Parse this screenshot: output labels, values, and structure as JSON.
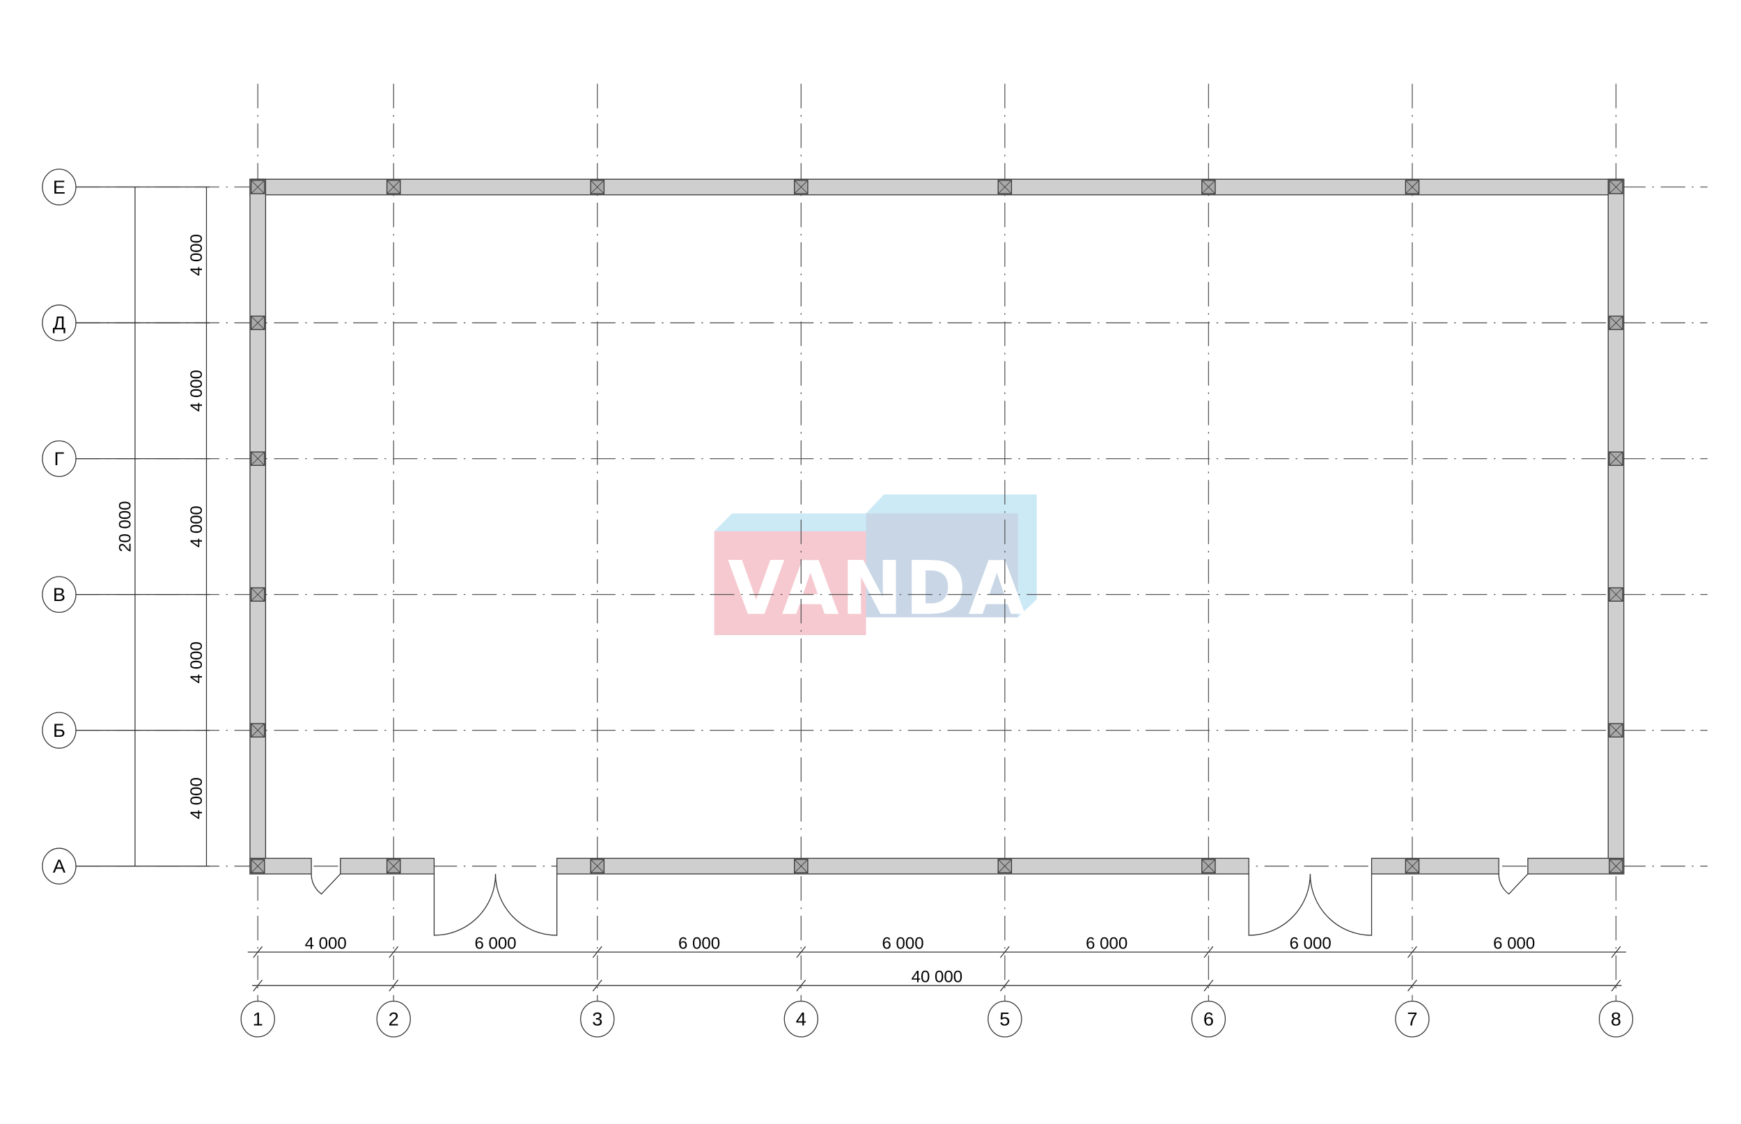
{
  "plan": {
    "column_axes": [
      "1",
      "2",
      "3",
      "4",
      "5",
      "6",
      "7",
      "8"
    ],
    "column_spacings_mm": [
      4000,
      6000,
      6000,
      6000,
      6000,
      6000,
      6000
    ],
    "column_dim_labels": [
      "4 000",
      "6 000",
      "6 000",
      "6 000",
      "6 000",
      "6 000",
      "6 000"
    ],
    "overall_width_label": "40 000",
    "row_axes": [
      "А",
      "Б",
      "В",
      "Г",
      "Д",
      "Е"
    ],
    "row_spacings_mm": [
      4000,
      4000,
      4000,
      4000,
      4000
    ],
    "row_dim_labels": [
      "4 000",
      "4 000",
      "4 000",
      "4 000",
      "4 000"
    ],
    "overall_height_label": "20 000",
    "doors": [
      {
        "type": "single",
        "between_axes": [
          "1",
          "2"
        ]
      },
      {
        "type": "double",
        "between_axes": [
          "2",
          "3"
        ]
      },
      {
        "type": "double",
        "between_axes": [
          "6",
          "7"
        ]
      },
      {
        "type": "single",
        "between_axes": [
          "7",
          "8"
        ]
      }
    ]
  },
  "watermark": {
    "text": "VANDA",
    "colors": {
      "pink": "#f6c9d0",
      "blue": "#c8d6e6",
      "cyan": "#cce9f6"
    }
  },
  "colors": {
    "wall": "#cfcfcf",
    "column": "#a9a9a9",
    "line": "#333333"
  }
}
